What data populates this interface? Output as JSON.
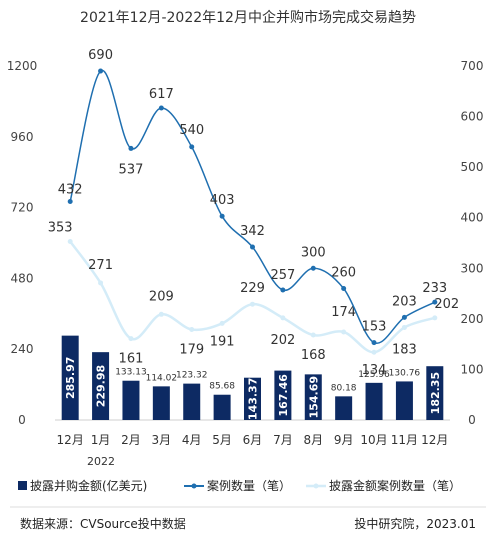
{
  "chart_data": {
    "type": "bar",
    "title": "2021年12月-2022年12月中企并购市场完成交易趋势",
    "categories": [
      "12月",
      "1月",
      "2月",
      "3月",
      "4月",
      "5月",
      "6月",
      "7月",
      "8月",
      "9月",
      "10月",
      "11月",
      "12月"
    ],
    "year_label": "2022",
    "left_axis": {
      "ticks": [
        "0",
        "240",
        "480",
        "720",
        "960",
        "1200"
      ],
      "range": [
        0,
        1200
      ]
    },
    "right_axis": {
      "ticks": [
        "0",
        "100",
        "200",
        "300",
        "400",
        "500",
        "600",
        "700"
      ],
      "range": [
        0,
        700
      ]
    },
    "series": [
      {
        "name": "披露并购金额(亿美元)",
        "kind": "bar",
        "axis": "left",
        "color": "#0d2a63",
        "values": [
          285.97,
          229.98,
          133.13,
          114.02,
          123.32,
          85.68,
          143.37,
          167.46,
          154.69,
          80.18,
          125.96,
          130.76,
          182.35
        ],
        "labels": [
          "285.97",
          "229.98",
          "133.13",
          "114.02",
          "123.32",
          "85.68",
          "143.37",
          "167.46",
          "154.69",
          "80.18",
          "125.96",
          "130.76",
          "182.35"
        ]
      },
      {
        "name": "案例数量（笔）",
        "kind": "line",
        "axis": "right",
        "color": "#1f6fb0",
        "values": [
          432,
          690,
          537,
          617,
          540,
          403,
          342,
          257,
          300,
          260,
          153,
          203,
          233
        ],
        "labels": [
          "432",
          "690",
          "537",
          "617",
          "540",
          "403",
          "342",
          "257",
          "300",
          "260",
          "153",
          "203",
          "233"
        ]
      },
      {
        "name": "披露金额案例数量（笔）",
        "kind": "line",
        "axis": "right",
        "color": "#d4ecf8",
        "values": [
          353,
          271,
          161,
          209,
          179,
          191,
          229,
          202,
          168,
          174,
          134,
          183,
          202
        ],
        "labels": [
          "353",
          "271",
          "161",
          "209",
          "179",
          "191",
          "229",
          "202",
          "168",
          "174",
          "134",
          "183",
          "202"
        ]
      }
    ],
    "legend_position": "bottom",
    "grid": false
  },
  "footer": {
    "source": "数据来源：CVSource投中数据",
    "credit": "投中研究院，2023.01"
  }
}
